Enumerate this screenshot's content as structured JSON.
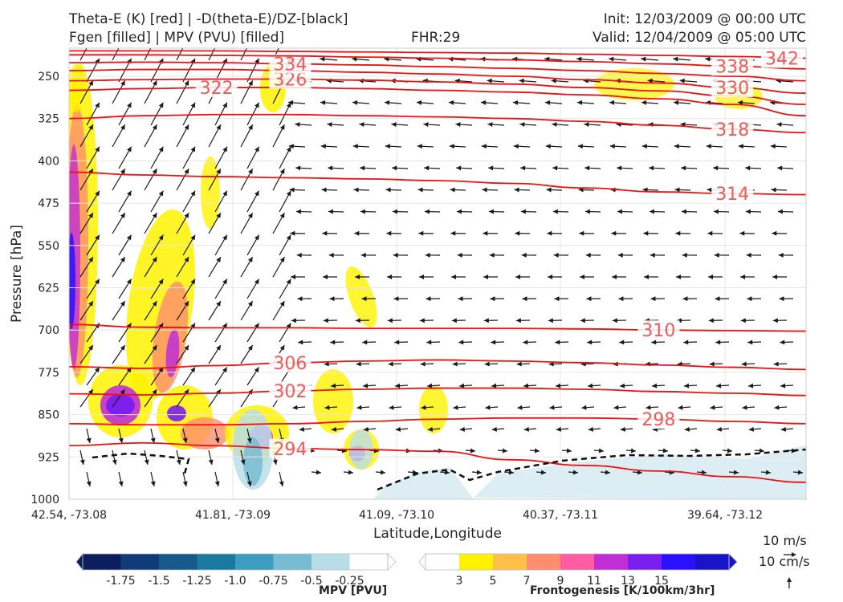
{
  "header": {
    "title_line1": "Theta-E (K) [red] | -D(theta-E)/DZ-[black]",
    "title_line2": "Fgen [filled] | MPV (PVU) [filled]",
    "fhr": "FHR:29",
    "init": "Init: 12/03/2009 @ 00:00 UTC",
    "valid": "Valid: 12/04/2009 @ 05:00 UTC"
  },
  "chart_data": {
    "type": "cross-section",
    "xlabel": "Latitude,Longitude",
    "ylabel": "Pressure [hPa]",
    "x_ticks": [
      "42.54, -73.08",
      "41.81, -73.09",
      "41.09, -73.10",
      "40.37, -73.11",
      "39.64, -73.12"
    ],
    "y_ticks": [
      250,
      325,
      400,
      475,
      550,
      625,
      700,
      775,
      850,
      925,
      1000
    ],
    "ylim": [
      1000,
      200
    ],
    "grid": true,
    "theta_e_contours": [
      {
        "label": "294",
        "values": [
          905,
          900,
          905,
          910,
          912,
          915,
          930,
          940,
          950,
          960,
          970
        ]
      },
      {
        "label": "298",
        "values": [
          866,
          868,
          868,
          866,
          862,
          858,
          856,
          856,
          858,
          862,
          866
        ]
      },
      {
        "label": "302",
        "values": [
          813,
          815,
          812,
          808,
          805,
          803,
          803,
          805,
          809,
          812,
          816
        ]
      },
      {
        "label": "306",
        "values": [
          765,
          768,
          763,
          758,
          755,
          753,
          755,
          758,
          762,
          766,
          770
        ]
      },
      {
        "label": "310",
        "values": [
          690,
          695,
          696,
          696,
          697,
          697,
          697,
          698,
          700,
          701,
          702
        ]
      },
      {
        "label": "314",
        "values": [
          420,
          425,
          428,
          430,
          432,
          435,
          440,
          448,
          455,
          458,
          460
        ]
      },
      {
        "label": "318",
        "values": [
          325,
          320,
          318,
          318,
          320,
          322,
          325,
          330,
          337,
          344,
          350
        ]
      },
      {
        "label": "322",
        "values": [
          275,
          272,
          270,
          270,
          272,
          275,
          278,
          283,
          290,
          300,
          320
        ]
      },
      {
        "label": "326",
        "values": [
          258,
          256,
          255,
          255,
          257,
          260,
          264,
          270,
          276,
          285,
          300
        ]
      },
      {
        "label": "330",
        "values": [
          240,
          238,
          238,
          240,
          243,
          246,
          250,
          256,
          262,
          270,
          280
        ]
      },
      {
        "label": "334",
        "values": [
          226,
          225,
          226,
          228,
          230,
          233,
          236,
          240,
          245,
          250,
          258
        ]
      },
      {
        "label": "338",
        "values": [
          212,
          212,
          213,
          214,
          216,
          218,
          221,
          224,
          228,
          232,
          237
        ]
      },
      {
        "label": "342",
        "values": [
          205,
          205,
          205,
          206,
          207,
          208,
          209,
          211,
          213,
          215,
          218
        ]
      }
    ],
    "mpv_colorbar": {
      "title": "MPV [PVU]",
      "ticks": [
        "-1.75",
        "-1.5",
        "-1.25",
        "-1.0",
        "-0.75",
        "-0.5",
        "-0.25"
      ],
      "colors": [
        "#0b1f5c",
        "#0f3c78",
        "#165a8c",
        "#1a7a9e",
        "#3d9dbf",
        "#78bcd4",
        "#b9dde8",
        "#ffffff"
      ]
    },
    "fgen_colorbar": {
      "title": "Frontogenesis [K/100km/3hr]",
      "ticks": [
        "3",
        "5",
        "7",
        "9",
        "11",
        "13",
        "15"
      ],
      "colors": [
        "#ffffff",
        "#fff200",
        "#ffc04a",
        "#ff8c6e",
        "#ff5ca3",
        "#c02ed6",
        "#7a1ef0",
        "#2a10ff",
        "#1a14c8"
      ]
    },
    "wind_reference": {
      "horizontal": "10 m/s",
      "vertical": "10 cm/s"
    }
  }
}
